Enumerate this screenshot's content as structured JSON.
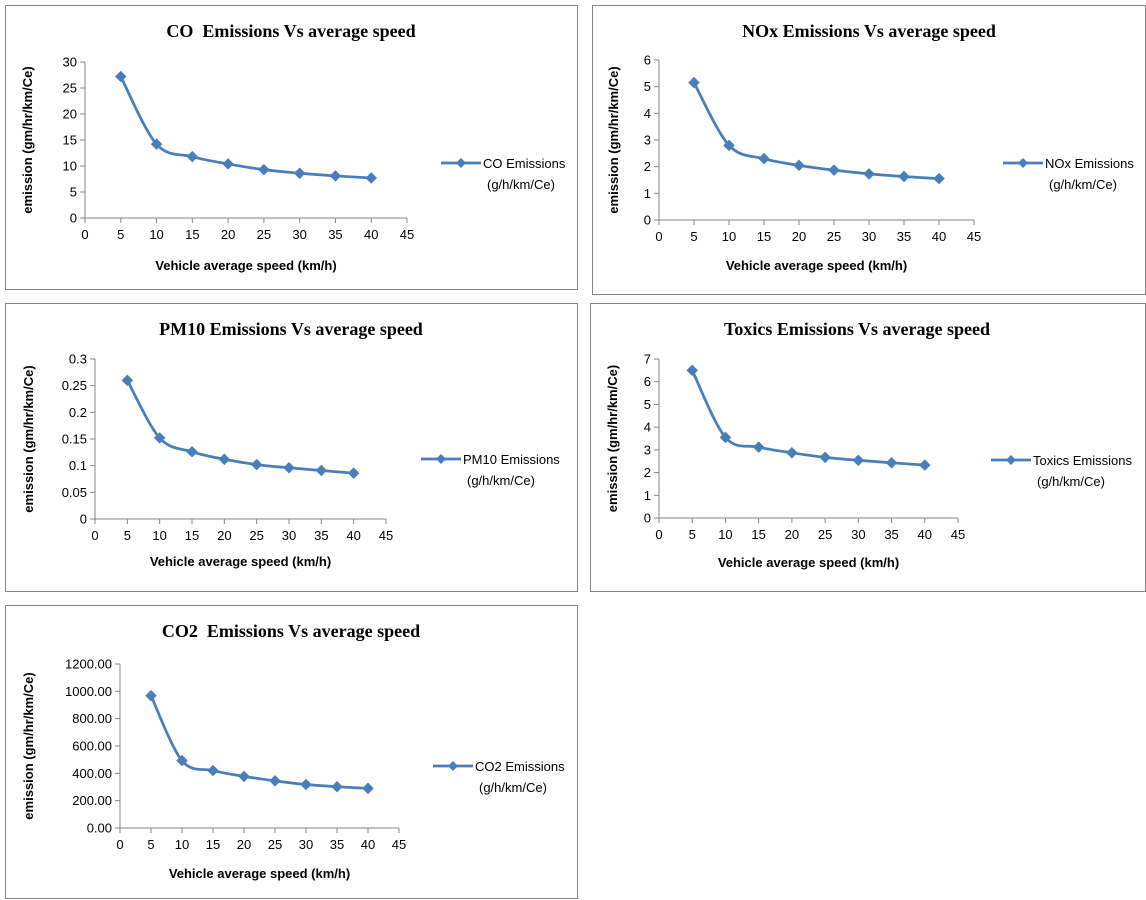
{
  "chart_data": [
    {
      "type": "line",
      "title": "CO  Emissions Vs average speed",
      "xlabel": "Vehicle average speed (km/h)",
      "ylabel": "emission (gm/hr/km/Ce)",
      "xlim": [
        0,
        45
      ],
      "xticks": [
        0,
        5,
        10,
        15,
        20,
        25,
        30,
        35,
        40,
        45
      ],
      "ylim": [
        0,
        30
      ],
      "yticks": [
        "0",
        "5",
        "10",
        "15",
        "20",
        "25",
        "30"
      ],
      "series": [
        {
          "name_lines": [
            "CO Emissions",
            "(g/h/km/Ce)"
          ],
          "color": "#4a7ebb",
          "x": [
            5,
            10,
            15,
            20,
            25,
            30,
            35,
            40
          ],
          "y": [
            27.2,
            14.2,
            11.8,
            10.4,
            9.3,
            8.6,
            8.1,
            7.7
          ]
        }
      ],
      "legend": "right",
      "grid": false
    },
    {
      "type": "line",
      "title": "NOx Emissions Vs average speed",
      "xlabel": "Vehicle average speed (km/h)",
      "ylabel": "emission (gm/hr/km/Ce)",
      "xlim": [
        0,
        45
      ],
      "xticks": [
        0,
        5,
        10,
        15,
        20,
        25,
        30,
        35,
        40,
        45
      ],
      "ylim": [
        0,
        6
      ],
      "yticks": [
        "0",
        "1",
        "2",
        "3",
        "4",
        "5",
        "6"
      ],
      "series": [
        {
          "name_lines": [
            "NOx Emissions",
            "(g/h/km/Ce)"
          ],
          "color": "#4a7ebb",
          "x": [
            5,
            10,
            15,
            20,
            25,
            30,
            35,
            40
          ],
          "y": [
            5.15,
            2.8,
            2.3,
            2.05,
            1.87,
            1.73,
            1.63,
            1.55
          ]
        }
      ],
      "legend": "right",
      "grid": false
    },
    {
      "type": "line",
      "title": "PM10 Emissions Vs average speed",
      "xlabel": "Vehicle average speed (km/h)",
      "ylabel": "emission (gm/hr/km/Ce)",
      "xlim": [
        0,
        45
      ],
      "xticks": [
        0,
        5,
        10,
        15,
        20,
        25,
        30,
        35,
        40,
        45
      ],
      "ylim": [
        0,
        0.3
      ],
      "yticks": [
        "0",
        "0.05",
        "0.1",
        "0.15",
        "0.2",
        "0.25",
        "0.3"
      ],
      "series": [
        {
          "name_lines": [
            "PM10 Emissions",
            "(g/h/km/Ce)"
          ],
          "color": "#4a7ebb",
          "x": [
            5,
            10,
            15,
            20,
            25,
            30,
            35,
            40
          ],
          "y": [
            0.26,
            0.152,
            0.126,
            0.112,
            0.102,
            0.096,
            0.091,
            0.086
          ]
        }
      ],
      "legend": "right",
      "grid": false
    },
    {
      "type": "line",
      "title": "Toxics Emissions Vs average speed",
      "xlabel": "Vehicle average speed (km/h)",
      "ylabel": "emission (gm/hr/km/Ce)",
      "xlim": [
        0,
        45
      ],
      "xticks": [
        0,
        5,
        10,
        15,
        20,
        25,
        30,
        35,
        40,
        45
      ],
      "ylim": [
        0,
        7
      ],
      "yticks": [
        "0",
        "1",
        "2",
        "3",
        "4",
        "5",
        "6",
        "7"
      ],
      "series": [
        {
          "name_lines": [
            "Toxics Emissions",
            "(g/h/km/Ce)"
          ],
          "color": "#4a7ebb",
          "x": [
            5,
            10,
            15,
            20,
            25,
            30,
            35,
            40
          ],
          "y": [
            6.5,
            3.55,
            3.12,
            2.87,
            2.67,
            2.54,
            2.43,
            2.33
          ]
        }
      ],
      "legend": "right",
      "grid": false
    },
    {
      "type": "line",
      "title": "CO2  Emissions Vs average speed",
      "xlabel": "Vehicle average speed (km/h)",
      "ylabel": "emission (gm/hr/km/Ce)",
      "xlim": [
        0,
        45
      ],
      "xticks": [
        0,
        5,
        10,
        15,
        20,
        25,
        30,
        35,
        40,
        45
      ],
      "ylim": [
        0,
        1200
      ],
      "yticks": [
        "0.00",
        "200.00",
        "400.00",
        "600.00",
        "800.00",
        "1000.00",
        "1200.00"
      ],
      "series": [
        {
          "name_lines": [
            "CO2 Emissions",
            "(g/h/km/Ce)"
          ],
          "color": "#4a7ebb",
          "x": [
            5,
            10,
            15,
            20,
            25,
            30,
            35,
            40
          ],
          "y": [
            968,
            493,
            420,
            378,
            345,
            318,
            302,
            290
          ]
        }
      ],
      "legend": "right",
      "grid": false
    }
  ]
}
